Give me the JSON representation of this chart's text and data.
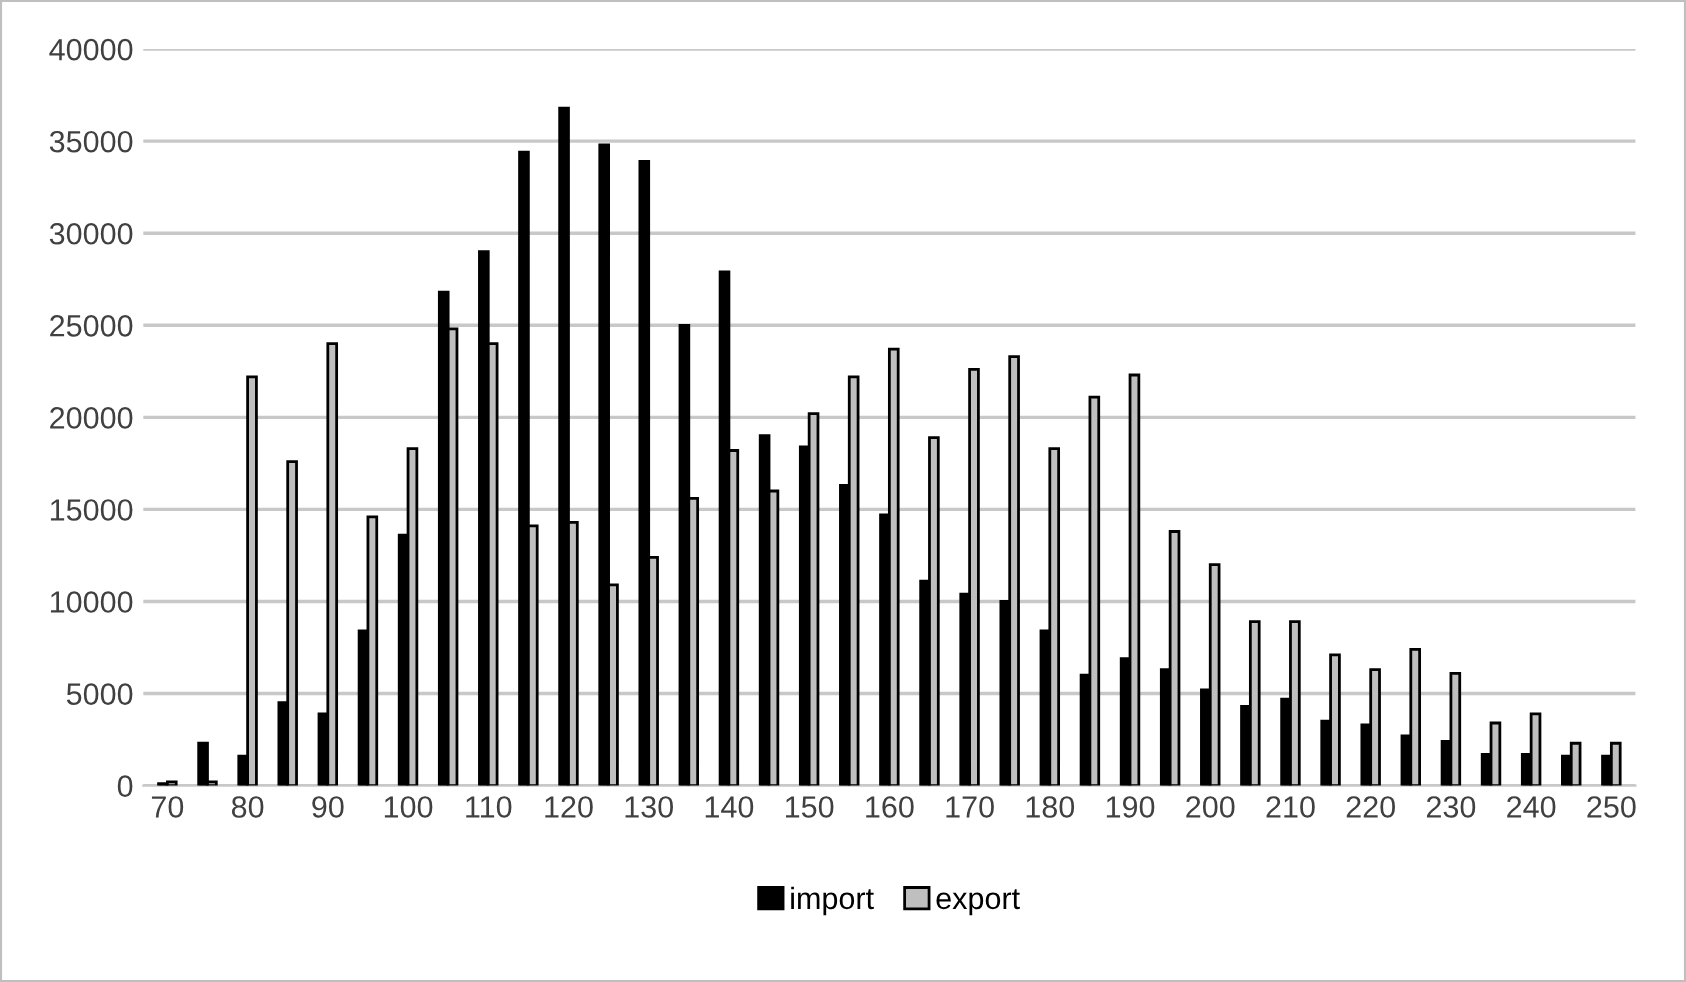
{
  "chart_data": {
    "type": "bar",
    "categories": [
      "70",
      null,
      "80",
      null,
      "90",
      null,
      "100",
      null,
      "110",
      null,
      "120",
      null,
      "130",
      null,
      "140",
      null,
      "150",
      null,
      "160",
      null,
      "170",
      null,
      "180",
      null,
      "190",
      null,
      "200",
      null,
      "210",
      null,
      "220",
      null,
      "230",
      null,
      "240",
      null,
      "250"
    ],
    "series": [
      {
        "name": "import",
        "color": "#000000",
        "values": [
          100,
          2300,
          1600,
          4500,
          3900,
          8400,
          13600,
          26800,
          29000,
          34400,
          36800,
          34800,
          33900,
          25000,
          27900,
          19000,
          18400,
          16300,
          14700,
          11100,
          10400,
          10000,
          8400,
          6000,
          6900,
          6300,
          5200,
          4300,
          4700,
          3500,
          3300,
          2700,
          2400,
          1700,
          1700,
          1600,
          1600
        ]
      },
      {
        "name": "export",
        "color": "#bfbfbf",
        "values": [
          200,
          200,
          22200,
          17600,
          24000,
          14600,
          18300,
          24800,
          24000,
          14100,
          14300,
          10900,
          12400,
          15600,
          18200,
          16000,
          20200,
          22200,
          23700,
          18900,
          22600,
          23300,
          18300,
          21100,
          22300,
          13800,
          12000,
          8900,
          8900,
          7100,
          6300,
          7400,
          6100,
          3400,
          3900,
          2300,
          2300
        ]
      }
    ],
    "ylim": [
      0,
      40000
    ],
    "yticks": [
      0,
      5000,
      10000,
      15000,
      20000,
      25000,
      30000,
      35000,
      40000
    ],
    "grid": "y",
    "legend": "bottom"
  }
}
